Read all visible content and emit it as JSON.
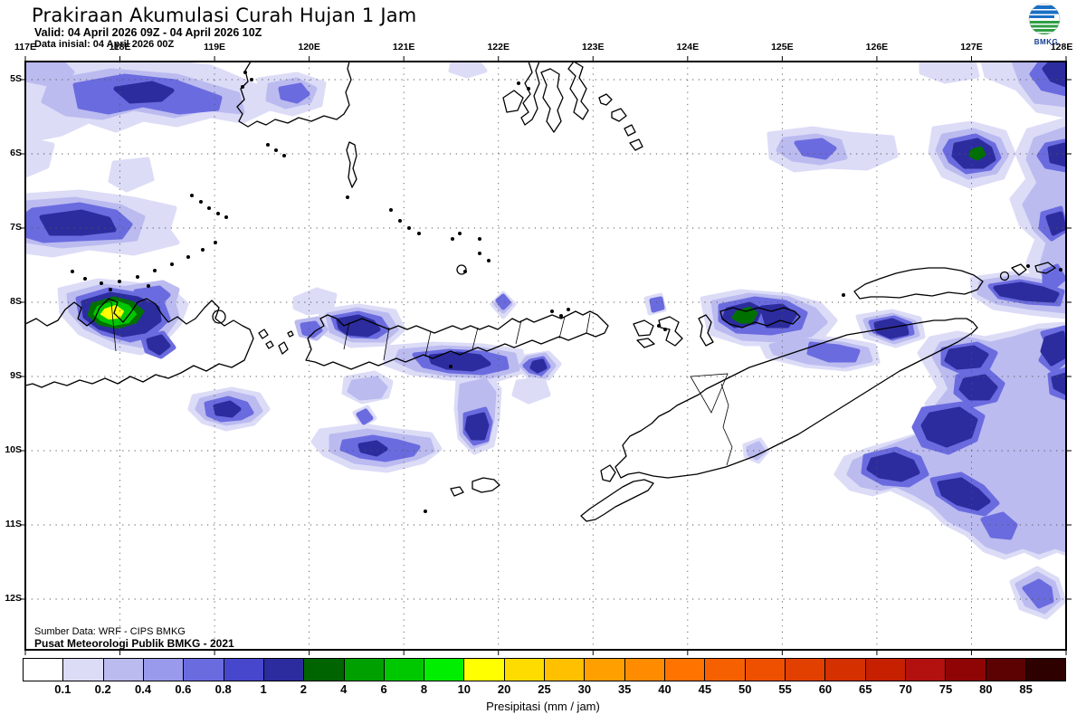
{
  "header": {
    "title": "Prakiraan Akumulasi Curah Hujan 1 Jam",
    "valid": "Valid: 04 April 2026 09Z - 04 April 2026 10Z",
    "init": "Data inisial: 04 April 2026 00Z"
  },
  "logo": {
    "text": "BMKG"
  },
  "map": {
    "lon_labels": [
      "117E",
      "118E",
      "119E",
      "120E",
      "121E",
      "122E",
      "123E",
      "124E",
      "125E",
      "126E",
      "127E",
      "128E"
    ],
    "lat_labels": [
      "5S",
      "6S",
      "7S",
      "8S",
      "9S",
      "10S",
      "11S",
      "12S"
    ],
    "source_line1": "Sumber Data: WRF - CIPS BMKG",
    "source_line2": "Pusat Meteorologi Publik BMKG - 2021"
  },
  "colorbar": {
    "caption": "Presipitasi (mm / jam)",
    "labels": [
      "0.1",
      "0.2",
      "0.4",
      "0.6",
      "0.8",
      "1",
      "2",
      "4",
      "6",
      "8",
      "10",
      "20",
      "25",
      "30",
      "35",
      "40",
      "45",
      "50",
      "55",
      "60",
      "65",
      "70",
      "75",
      "80",
      "85"
    ],
    "colors": [
      "#ffffff",
      "#dcdcf7",
      "#bbbbf0",
      "#9a9aec",
      "#6b6be0",
      "#4747cd",
      "#2c2c9e",
      "#006400",
      "#00a000",
      "#00c800",
      "#00ee00",
      "#ffff00",
      "#ffdc00",
      "#ffc000",
      "#ffa000",
      "#ff8c00",
      "#ff7300",
      "#f76000",
      "#ee5000",
      "#e24000",
      "#d43000",
      "#c62000",
      "#b31010",
      "#8f0404",
      "#5c0202",
      "#2e0101"
    ]
  },
  "precip_levels": {
    "l1": "#dcdcf7",
    "l2": "#bbbbf0",
    "l3": "#9a9aec",
    "l4": "#6b6be0",
    "l5": "#4747cd",
    "l6": "#2c2c9e",
    "g1": "#007000",
    "g2": "#00c800",
    "yellow": "#ffff00"
  }
}
